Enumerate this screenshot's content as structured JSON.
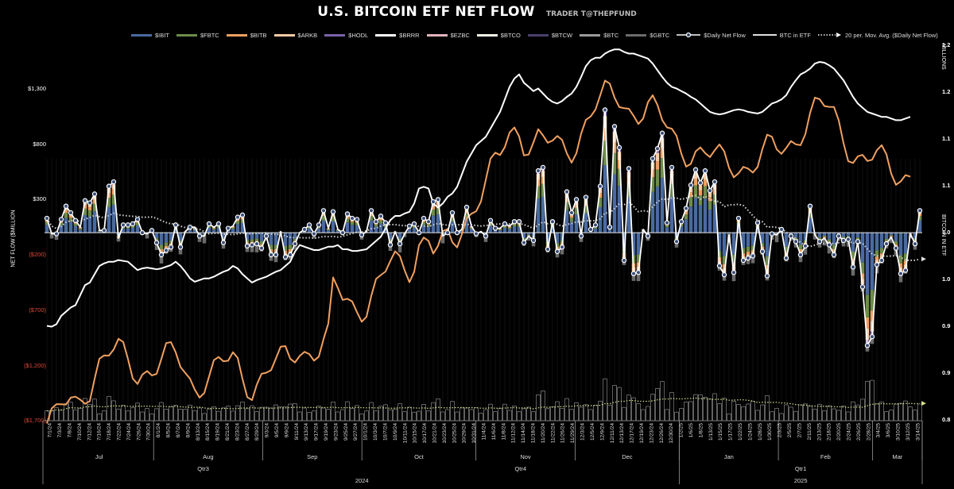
{
  "title": "U.S. BITCOIN ETF NET FLOW",
  "subtitle": "TRADER T@THEPFUND",
  "legend": [
    {
      "name": "$IBIT",
      "color": "#4a6aa0",
      "kind": "bar"
    },
    {
      "name": "$FBTC",
      "color": "#6e8c4b",
      "kind": "bar"
    },
    {
      "name": "$BITB",
      "color": "#f0a060",
      "kind": "bar"
    },
    {
      "name": "$ARKB",
      "color": "#f7cba5",
      "kind": "bar"
    },
    {
      "name": "$HODL",
      "color": "#7a64a8",
      "kind": "bar"
    },
    {
      "name": "$BRRR",
      "color": "#ffffff",
      "kind": "bar"
    },
    {
      "name": "$EZBC",
      "color": "#e3b4bc",
      "kind": "bar"
    },
    {
      "name": "$BTCO",
      "color": "#f2f3e6",
      "kind": "bar"
    },
    {
      "name": "$BTCW",
      "color": "#4a3f6a",
      "kind": "bar"
    },
    {
      "name": "$BTC",
      "color": "#9a9a9a",
      "kind": "bar"
    },
    {
      "name": "$GBTC",
      "color": "#6b6b6b",
      "kind": "bar"
    },
    {
      "name": "$Daily Net Flow",
      "color": "#ffffff",
      "kind": "marker-line"
    },
    {
      "name": "BTC in ETF",
      "color": "#ffffff",
      "kind": "line"
    },
    {
      "name": "20 per. Mov. Avg. ($Daily Net Flow)",
      "color": "#ffffff",
      "kind": "dotted-arrow"
    }
  ],
  "axes": {
    "left_label": "NET FLOW ($MILLION",
    "left_ticks": [
      "$1,300",
      "$800",
      "$300",
      "($200)",
      "($700)",
      "($1,200)",
      "($1,700)"
    ],
    "right_label": "BITCOIN IN ETF",
    "right_unit": "MILLIONS",
    "right_ticks": [
      "1.2",
      "1.2",
      "1.1",
      "1.1",
      "1.0",
      "1.0",
      "0.9",
      "0.9",
      "0.8"
    ]
  },
  "chart_data": {
    "type": "bar",
    "title": "U.S. BITCOIN ETF NET FLOW",
    "xlabel": "",
    "ylabel": "NET FLOW ($MILLION",
    "y2label": "BITCOIN IN ETF (MILLIONS)",
    "ylim": [
      -1700,
      1300
    ],
    "y2lim": [
      0.8,
      1.2
    ],
    "grid": false,
    "legend_position": "top",
    "date_ticks": [
      "7/1/24",
      "7/3/24",
      "7/8/24",
      "7/10/24",
      "7/12/24",
      "7/16/24",
      "7/18/24",
      "7/22/24",
      "7/24/24",
      "7/26/24",
      "7/30/24",
      "8/1/24",
      "8/5/24",
      "8/7/24",
      "8/9/24",
      "8/13/24",
      "8/15/24",
      "8/19/24",
      "8/21/24",
      "8/23/24",
      "8/27/24",
      "8/29/24",
      "9/3/24",
      "9/5/24",
      "9/9/24",
      "9/11/24",
      "9/13/24",
      "9/17/24",
      "9/19/24",
      "9/23/24",
      "9/25/24",
      "9/27/24",
      "10/1/24",
      "10/3/24",
      "10/7/24",
      "10/9/24",
      "10/11/24",
      "10/15/24",
      "10/17/24",
      "10/21/24",
      "10/23/24",
      "10/25/24",
      "10/29/24",
      "10/31/24",
      "11/4/24",
      "11/6/24",
      "11/8/24",
      "11/12/24",
      "11/14/24",
      "11/18/24",
      "11/20/24",
      "11/22/24",
      "11/26/24",
      "11/29/24",
      "12/3/24",
      "12/5/24",
      "12/9/24",
      "12/11/24",
      "12/13/24",
      "12/17/24",
      "12/19/24",
      "12/23/24",
      "12/26/24",
      "12/30/24",
      "1/2/25",
      "1/6/25",
      "1/8/25",
      "1/13/25",
      "1/15/25",
      "1/17/25",
      "1/22/25",
      "1/24/25",
      "1/28/25",
      "1/30/25",
      "2/3/25",
      "2/5/25",
      "2/7/25",
      "2/11/25",
      "2/13/25",
      "2/18/25",
      "2/20/25",
      "2/24/25",
      "2/26/25",
      "2/28/25",
      "3/4/25",
      "3/6/25",
      "3/10/25",
      "3/12/25",
      "3/14/25"
    ],
    "months": [
      {
        "label": "Jul",
        "days": 22
      },
      {
        "label": "Aug",
        "days": 22
      },
      {
        "label": "Sep",
        "days": 20
      },
      {
        "label": "Oct",
        "days": 23
      },
      {
        "label": "Nov",
        "days": 20
      },
      {
        "label": "Dec",
        "days": 21
      },
      {
        "label": "Jan",
        "days": 20
      },
      {
        "label": "Feb",
        "days": 19
      },
      {
        "label": "Mar",
        "days": 10
      }
    ],
    "quarters": [
      {
        "label": "Qtr3",
        "months": 3
      },
      {
        "label": "Qtr4",
        "months": 3
      },
      {
        "label": "Qtr1",
        "months": 3
      }
    ],
    "years": [
      {
        "label": "2024",
        "months": 6
      },
      {
        "label": "2025",
        "months": 3
      }
    ],
    "series": [
      {
        "name": "$Daily Net Flow",
        "values": [
          130,
          -10,
          -10,
          120,
          240,
          180,
          110,
          50,
          290,
          270,
          350,
          20,
          20,
          420,
          460,
          -50,
          70,
          70,
          80,
          120,
          0,
          -10,
          20,
          -90,
          -200,
          -160,
          -130,
          70,
          -130,
          10,
          50,
          50,
          -30,
          -30,
          80,
          50,
          80,
          -90,
          40,
          60,
          140,
          160,
          -120,
          -110,
          -100,
          -140,
          -30,
          -200,
          -200,
          10,
          -220,
          -200,
          -100,
          0,
          30,
          70,
          -10,
          70,
          200,
          40,
          190,
          30,
          0,
          170,
          130,
          120,
          -20,
          10,
          200,
          100,
          150,
          90,
          -110,
          10,
          -100,
          -10,
          60,
          80,
          0,
          130,
          100,
          280,
          300,
          -30,
          0,
          180,
          0,
          30,
          230,
          60,
          -10,
          10,
          -30,
          110,
          40,
          40,
          80,
          60,
          100,
          100,
          -90,
          -30,
          -70,
          560,
          590,
          -150,
          100,
          -170,
          -130,
          370,
          180,
          300,
          -30,
          320,
          30,
          70,
          420,
          1110,
          50,
          960,
          770,
          -250,
          580,
          -370,
          -360,
          30,
          -30,
          670,
          760,
          900,
          90,
          590,
          -80,
          100,
          220,
          430,
          570,
          450,
          560,
          380,
          460,
          -300,
          -380,
          -20,
          -360,
          130,
          -250,
          -230,
          -210,
          90,
          -170,
          -390,
          -10,
          -20,
          30,
          -230,
          -30,
          -80,
          -200,
          -120,
          240,
          -20,
          -80,
          -50,
          -110,
          -200,
          -30,
          -70,
          -60,
          -310,
          -80,
          -490,
          -1020,
          -940,
          -290,
          -250,
          -100,
          -40,
          -140,
          -370,
          -340,
          -10,
          -100,
          200
        ],
        "_note": "values in $M, approximate readings"
      },
      {
        "name": "BTC in ETF",
        "unit": "millions",
        "values": [
          0.913,
          0.912,
          0.915,
          0.925,
          0.93,
          0.935,
          0.938,
          0.95,
          0.962,
          0.965,
          0.975,
          0.985,
          0.988,
          0.99,
          0.99,
          0.992,
          0.991,
          0.99,
          0.985,
          0.98,
          0.982,
          0.983,
          0.982,
          0.981,
          0.982,
          0.984,
          0.986,
          0.99,
          0.985,
          0.978,
          0.97,
          0.966,
          0.968,
          0.97,
          0.97,
          0.972,
          0.975,
          0.978,
          0.98,
          0.985,
          0.982,
          0.975,
          0.97,
          0.965,
          0.968,
          0.97,
          0.972,
          0.975,
          0.978,
          0.98,
          0.985,
          0.99,
          1.002,
          1.01,
          1.008,
          1.006,
          1.004,
          1.004,
          1.006,
          1.008,
          1.008,
          1.01,
          1.005,
          1.005,
          1.003,
          1.003,
          1.004,
          1.005,
          1.01,
          1.015,
          1.02,
          1.03,
          1.04,
          1.045,
          1.045,
          1.048,
          1.05,
          1.06,
          1.078,
          1.08,
          1.078,
          1.06,
          1.055,
          1.06,
          1.068,
          1.072,
          1.08,
          1.095,
          1.11,
          1.12,
          1.13,
          1.135,
          1.14,
          1.15,
          1.16,
          1.17,
          1.185,
          1.2,
          1.21,
          1.215,
          1.205,
          1.2,
          1.195,
          1.198,
          1.192,
          1.186,
          1.182,
          1.18,
          1.183,
          1.188,
          1.192,
          1.2,
          1.212,
          1.225,
          1.232,
          1.235,
          1.235,
          1.24,
          1.243,
          1.245,
          1.245,
          1.242,
          1.24,
          1.24,
          1.238,
          1.236,
          1.234,
          1.228,
          1.22,
          1.212,
          1.205,
          1.2,
          1.198,
          1.195,
          1.192,
          1.188,
          1.185,
          1.18,
          1.175,
          1.17,
          1.168,
          1.167,
          1.168,
          1.17,
          1.172,
          1.173,
          1.172,
          1.17,
          1.169,
          1.168,
          1.17,
          1.175,
          1.18,
          1.182,
          1.185,
          1.19,
          1.2,
          1.208,
          1.215,
          1.218,
          1.222,
          1.228,
          1.23,
          1.229,
          1.226,
          1.222,
          1.215,
          1.208,
          1.198,
          1.188,
          1.18,
          1.175,
          1.17,
          1.168,
          1.166,
          1.164,
          1.164,
          1.162,
          1.16,
          1.16,
          1.162,
          1.164
        ]
      }
    ]
  },
  "x_axis": {
    "months": [
      "Jul",
      "Aug",
      "Sep",
      "Oct",
      "Nov",
      "Dec",
      "Jan",
      "Feb",
      "Mar"
    ],
    "quarters": [
      "Qtr3",
      "Qtr4",
      "Qtr1"
    ],
    "years": [
      "2024",
      "2025"
    ]
  }
}
